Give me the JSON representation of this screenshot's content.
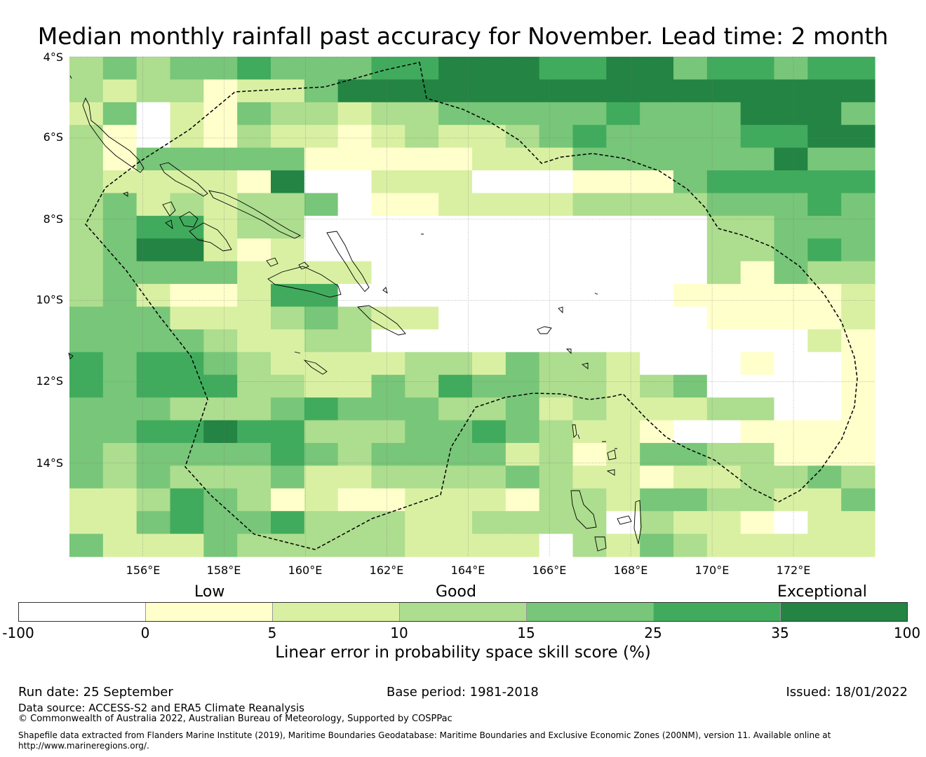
{
  "title": "Median monthly rainfall past accuracy for November. Lead time: 2 month",
  "axes": {
    "lat_labels": [
      "4°S",
      "6°S",
      "8°S",
      "10°S",
      "12°S",
      "14°S"
    ],
    "lat_values": [
      -4,
      -6,
      -8,
      -10,
      -12,
      -14
    ],
    "lon_labels": [
      "156°E",
      "158°E",
      "160°E",
      "162°E",
      "164°E",
      "166°E",
      "168°E",
      "170°E",
      "172°E"
    ],
    "lon_values": [
      156,
      158,
      160,
      162,
      164,
      166,
      168,
      170,
      172
    ],
    "lon_range": [
      154.2,
      174.0
    ],
    "lat_range": [
      -4.0,
      -16.3
    ]
  },
  "legend": {
    "category_labels": [
      "Low",
      "Good",
      "Exceptional"
    ],
    "tick_labels": [
      "-100",
      "0",
      "5",
      "10",
      "15",
      "25",
      "35",
      "100"
    ],
    "colors": [
      "#ffffff",
      "#ffffcc",
      "#d9f0a3",
      "#addd8e",
      "#78c679",
      "#41ab5d",
      "#238443"
    ],
    "title": "Linear error in probability space skill score (%)"
  },
  "grid": {
    "cols": 24,
    "rows": 22,
    "cells": [
      "343445444556665566455455",
      "323312246666666666666666",
      "240214332334444454446664",
      "310213221232234544445566",
      "314444411111222444444644",
      "322221600222000111455555",
      "342323340112222333344454",
      "345523300000000000033444",
      "346621200000000000033454",
      "344442222000000000031433",
      "342112550000000000111112",
      "444222343220000000011112",
      "444432233000000000000021",
      "545543222233243320001001",
      "545553322435443323400001",
      "444333454443342322233001",
      "445565533344543221001111",
      "434444543444423124433111",
      "434333422333343221223343",
      "223543121122213324433224",
      "224544533322333303221022",
      "422243333322220324322222"
    ]
  },
  "footer": {
    "run_date": "Run date: 25 September",
    "base_period": "Base period: 1981-2018",
    "issued": "Issued: 18/01/2022",
    "data_source": "Data source: ACCESS-S2 and ERA5 Climate Reanalysis",
    "copyright": "© Commonwealth of Australia 2022, Australian Bureau of Meteorology, Supported by COSPPac",
    "shapefile_line1": "Shapefile data extracted from Flanders Marine Institute (2019), Maritime Boundaries Geodatabase: Maritime Boundaries and Exclusive Economic Zones (200NM), version 11. Available online at",
    "shapefile_line2": "http://www.marineregions.org/."
  }
}
